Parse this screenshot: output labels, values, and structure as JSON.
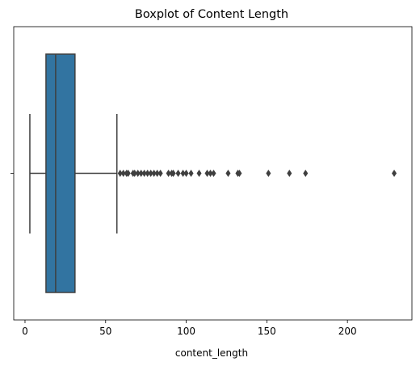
{
  "chart_data": {
    "type": "boxplot",
    "title": "Boxplot of Content Length",
    "xlabel": "content_length",
    "ylabel": "",
    "xlim": [
      -7,
      240
    ],
    "xticks": [
      0,
      50,
      100,
      150,
      200
    ],
    "grid": false,
    "orientation": "horizontal",
    "box_color": "#3274a1",
    "line_color": "#3f3f3f",
    "box": {
      "whisker_low": 3,
      "q1": 13,
      "median": 19,
      "q3": 31,
      "whisker_high": 57
    },
    "outliers": [
      59,
      61,
      63,
      64,
      67,
      68,
      70,
      72,
      74,
      76,
      78,
      80,
      82,
      84,
      89,
      91,
      92,
      95,
      98,
      100,
      103,
      108,
      113,
      115,
      117,
      126,
      132,
      133,
      151,
      164,
      174,
      229
    ]
  }
}
